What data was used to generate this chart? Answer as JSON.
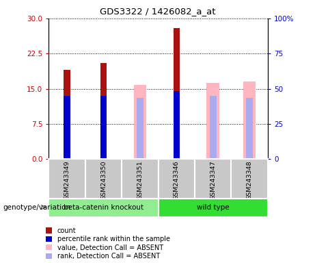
{
  "title": "GDS3322 / 1426082_a_at",
  "samples": [
    "GSM243349",
    "GSM243350",
    "GSM243351",
    "GSM243346",
    "GSM243347",
    "GSM243348"
  ],
  "red_bar_heights": [
    19.0,
    20.5,
    null,
    28.0,
    null,
    null
  ],
  "blue_bar_heights": [
    13.5,
    13.5,
    null,
    14.5,
    null,
    null
  ],
  "pink_bar_heights": [
    null,
    null,
    15.8,
    null,
    16.2,
    16.5
  ],
  "lavender_bar_heights": [
    null,
    null,
    13.0,
    null,
    13.5,
    13.0
  ],
  "ylim_left": [
    0,
    30
  ],
  "ylim_right": [
    0,
    100
  ],
  "yticks_left": [
    0,
    7.5,
    15,
    22.5,
    30
  ],
  "yticks_right": [
    0,
    25,
    50,
    75,
    100
  ],
  "left_tick_color": "#CC0000",
  "right_tick_color": "#0000CC",
  "red_color": "#AA1111",
  "blue_color": "#0000CC",
  "pink_color": "#FFB6C1",
  "lavender_color": "#AAAAEE",
  "narrow_bar_width": 0.18,
  "wide_bar_width": 0.35,
  "genotype_label": "genotype/variation",
  "group1_label": "beta-catenin knockout",
  "group2_label": "wild type",
  "group1_color": "#90EE90",
  "group2_color": "#33DD33",
  "sample_box_color": "#C8C8C8",
  "legend_items": [
    {
      "color": "#AA1111",
      "label": "count"
    },
    {
      "color": "#0000CC",
      "label": "percentile rank within the sample"
    },
    {
      "color": "#FFB6C1",
      "label": "value, Detection Call = ABSENT"
    },
    {
      "color": "#AAAAEE",
      "label": "rank, Detection Call = ABSENT"
    }
  ]
}
